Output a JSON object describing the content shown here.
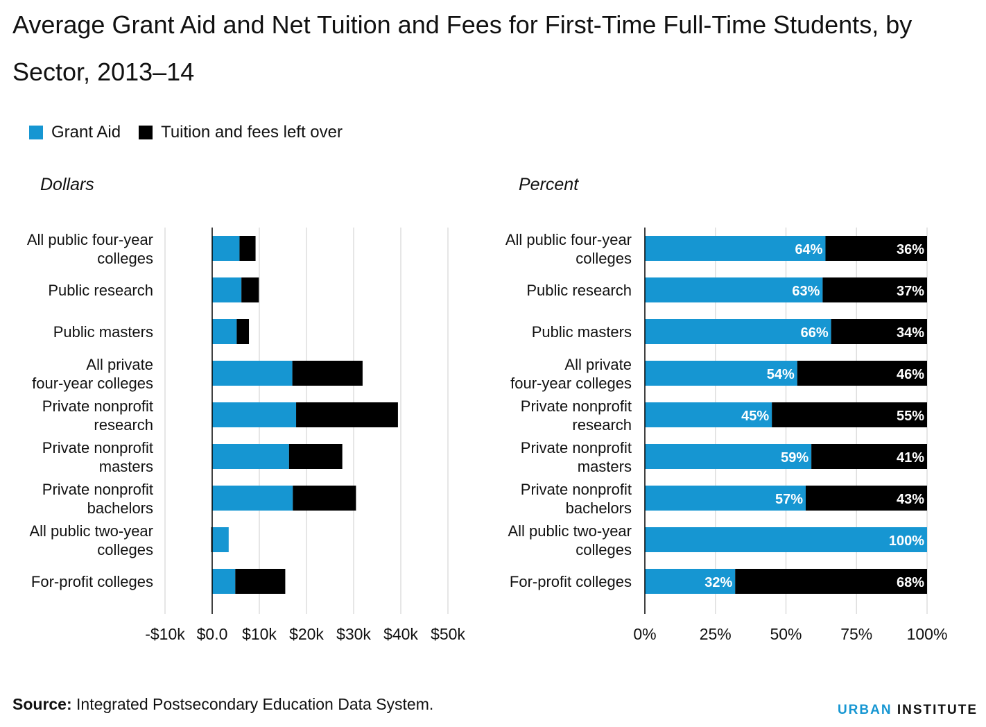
{
  "title": "Average Grant Aid and Net Tuition and Fees for First-Time Full-Time Students, by Sector, 2013–14",
  "legend": [
    {
      "label": "Grant Aid",
      "color": "#1696d2"
    },
    {
      "label": "Tuition and fees left over",
      "color": "#000000"
    }
  ],
  "colors": {
    "grant": "#1696d2",
    "tuition": "#000000",
    "grid": "#dedede"
  },
  "panels": {
    "left_label": "Dollars",
    "right_label": "Percent"
  },
  "source": {
    "bold": "Source:",
    "text": " Integrated Postsecondary Education Data System."
  },
  "brand": {
    "part1": "URBAN",
    "part2": " INSTITUTE"
  },
  "chart_data": [
    {
      "type": "bar",
      "orientation": "horizontal",
      "stacked": true,
      "panel_title": "Dollars",
      "categories": [
        [
          "All public four-year",
          "colleges"
        ],
        [
          "Public research"
        ],
        [
          "Public masters"
        ],
        [
          "All private",
          "four-year colleges"
        ],
        [
          "Private nonprofit",
          "research"
        ],
        [
          "Private nonprofit",
          "masters"
        ],
        [
          "Private nonprofit",
          "bachelors"
        ],
        [
          "All public two-year",
          "colleges"
        ],
        [
          "For-profit colleges"
        ]
      ],
      "series": [
        {
          "name": "Grant Aid",
          "values": [
            5800,
            6200,
            5200,
            17000,
            17800,
            16300,
            17100,
            3500,
            4900
          ]
        },
        {
          "name": "Tuition and fees left over",
          "values": [
            3400,
            3700,
            2600,
            14900,
            21600,
            11300,
            13400,
            -200,
            10600
          ]
        }
      ],
      "xlim": [
        -10000,
        50000
      ],
      "x_ticks": [
        -10000,
        0,
        10000,
        20000,
        30000,
        40000,
        50000
      ],
      "x_tick_labels": [
        "-$10k",
        "$0.0",
        "$10k",
        "$20k",
        "$30k",
        "$40k",
        "$50k"
      ],
      "grid": true
    },
    {
      "type": "bar",
      "orientation": "horizontal",
      "stacked": true,
      "panel_title": "Percent",
      "categories": [
        [
          "All public four-year",
          "colleges"
        ],
        [
          "Public research"
        ],
        [
          "Public masters"
        ],
        [
          "All private",
          "four-year colleges"
        ],
        [
          "Private nonprofit",
          "research"
        ],
        [
          "Private nonprofit",
          "masters"
        ],
        [
          "Private nonprofit",
          "bachelors"
        ],
        [
          "All public two-year",
          "colleges"
        ],
        [
          "For-profit colleges"
        ]
      ],
      "series": [
        {
          "name": "Grant Aid",
          "values": [
            64,
            63,
            66,
            54,
            45,
            59,
            57,
            100,
            32
          ],
          "labels": [
            "64%",
            "63%",
            "66%",
            "54%",
            "45%",
            "59%",
            "57%",
            "100%",
            "32%"
          ]
        },
        {
          "name": "Tuition and fees left over",
          "values": [
            36,
            37,
            34,
            46,
            55,
            41,
            43,
            0,
            68
          ],
          "labels": [
            "36%",
            "37%",
            "34%",
            "46%",
            "55%",
            "41%",
            "43%",
            "",
            "68%"
          ]
        }
      ],
      "xlim": [
        0,
        100
      ],
      "x_ticks": [
        0,
        25,
        50,
        75,
        100
      ],
      "x_tick_labels": [
        "0%",
        "25%",
        "50%",
        "75%",
        "100%"
      ],
      "grid": true
    }
  ]
}
